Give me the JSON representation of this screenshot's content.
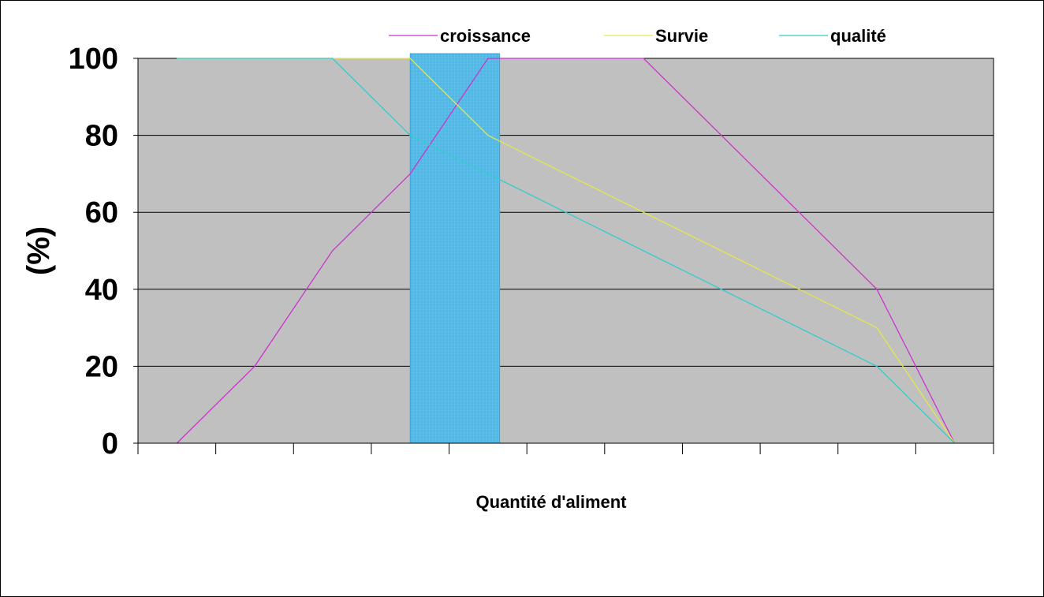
{
  "chart_data": {
    "type": "line",
    "title": "",
    "xlabel": "Quantité d'aliment",
    "ylabel": "(%)",
    "ylim": [
      0,
      100
    ],
    "yticks": [
      "0",
      "20",
      "40",
      "60",
      "80",
      "100"
    ],
    "x_categories": 11,
    "x": [
      0.5,
      1.5,
      2.5,
      3.5,
      4.5,
      5.5,
      6.5,
      7.5,
      8.5,
      9.5,
      10.5
    ],
    "grid": true,
    "legend_position": "top",
    "highlight_band": {
      "x_range": [
        3.5,
        4.65
      ],
      "color": "#4fb8e6"
    },
    "plot_background": "#c0c0c0",
    "series": [
      {
        "name": "croissance",
        "color": "#cc33cc",
        "values": [
          0,
          20,
          50,
          70,
          100,
          100,
          100,
          80,
          60,
          40,
          0
        ]
      },
      {
        "name": "Survie",
        "color": "#e6e64d",
        "values": [
          100,
          100,
          100,
          100,
          80,
          70,
          60,
          50,
          40,
          30,
          0
        ]
      },
      {
        "name": "qualité",
        "color": "#33cccc",
        "values": [
          100,
          100,
          100,
          80,
          70,
          60,
          50,
          40,
          30,
          20,
          0
        ]
      }
    ]
  }
}
